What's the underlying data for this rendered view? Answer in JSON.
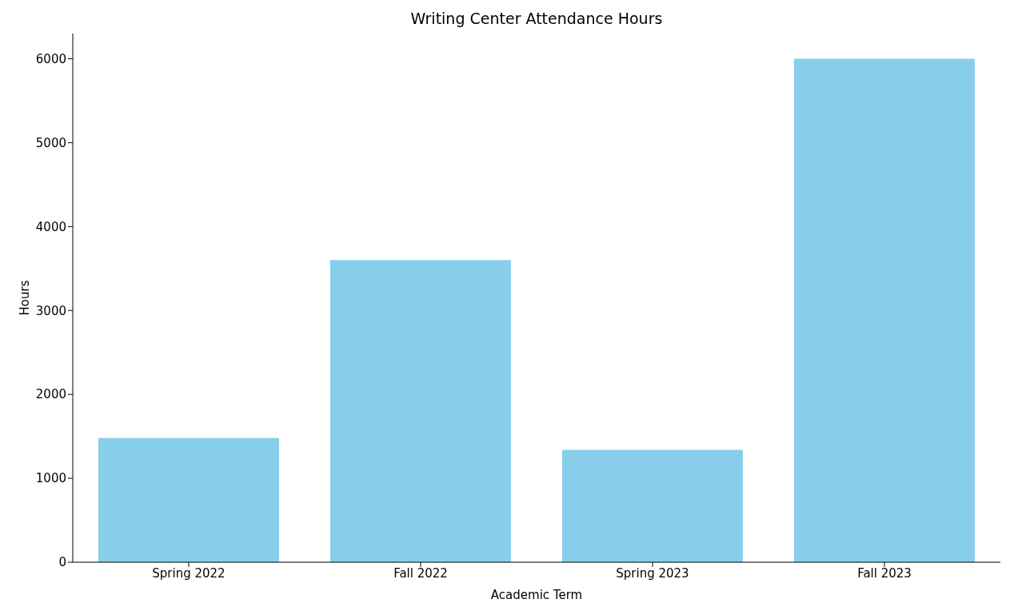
{
  "chart_data": {
    "type": "bar",
    "title": "Writing Center Attendance Hours",
    "xlabel": "Academic Term",
    "ylabel": "Hours",
    "categories": [
      "Spring 2022",
      "Fall 2022",
      "Spring 2023",
      "Fall 2023"
    ],
    "values": [
      1480,
      3600,
      1340,
      6000
    ],
    "color": "#87ceeb",
    "ylim": [
      0,
      6300
    ],
    "yticks": [
      0,
      1000,
      2000,
      3000,
      4000,
      5000,
      6000
    ],
    "grid": false
  }
}
